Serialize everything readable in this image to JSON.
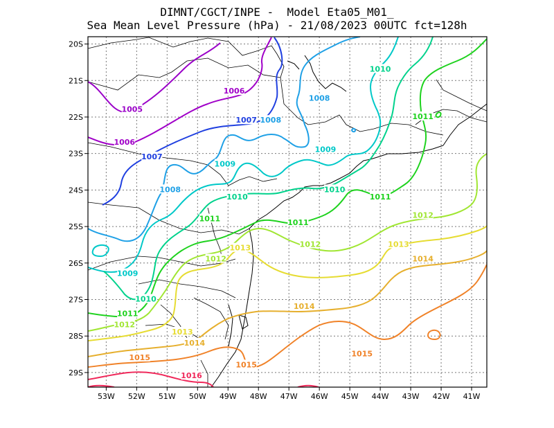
{
  "title": {
    "line1": "DIMNT/CGCT/INPE -  Model Eta05_M01_",
    "line2": "Sea Mean Level Pressure (hPa) - 21/08/2023 00UTC fct=128h"
  },
  "axes": {
    "lon_ticks": [
      "53W",
      "52W",
      "51W",
      "50W",
      "49W",
      "48W",
      "47W",
      "46W",
      "45W",
      "44W",
      "43W",
      "42W",
      "41W"
    ],
    "lat_ticks": [
      "20S",
      "21S",
      "22S",
      "23S",
      "24S",
      "25S",
      "26S",
      "27S",
      "28S",
      "29S"
    ],
    "lon_range": [
      -53.6,
      -40.5
    ],
    "lat_range": [
      -29.4,
      -19.8
    ]
  },
  "colors": {
    "1005": "#9a00c8",
    "1006": "#a000c8",
    "1007": "#2040e0",
    "1008": "#1ea0e6",
    "1009": "#00c8c8",
    "1010": "#00d28c",
    "1011": "#1ed21e",
    "1012": "#a0e632",
    "1013": "#e6dc32",
    "1014": "#e6af2d",
    "1015": "#f08228",
    "1016": "#f0285a"
  },
  "contour_labels": [
    {
      "text": "1005",
      "lon": -52.15,
      "lat": -21.8,
      "level": "1005"
    },
    {
      "text": "1006",
      "lon": -52.4,
      "lat": -22.7,
      "level": "1006"
    },
    {
      "text": "1006",
      "lon": -48.8,
      "lat": -21.3,
      "level": "1006"
    },
    {
      "text": "1007",
      "lon": -51.5,
      "lat": -23.1,
      "level": "1007"
    },
    {
      "text": "1007",
      "lon": -48.4,
      "lat": -22.1,
      "level": "1007"
    },
    {
      "text": "1008",
      "lon": -50.9,
      "lat": -24.0,
      "level": "1008"
    },
    {
      "text": "1008",
      "lon": -47.6,
      "lat": -22.1,
      "level": "1008"
    },
    {
      "text": "1008",
      "lon": -46.0,
      "lat": -21.5,
      "level": "1008"
    },
    {
      "text": "1009",
      "lon": -49.1,
      "lat": -23.3,
      "level": "1009"
    },
    {
      "text": "1009",
      "lon": -45.8,
      "lat": -22.9,
      "level": "1009"
    },
    {
      "text": "1009",
      "lon": -52.3,
      "lat": -26.3,
      "level": "1009"
    },
    {
      "text": "1010",
      "lon": -44.0,
      "lat": -20.7,
      "level": "1010"
    },
    {
      "text": "1010",
      "lon": -48.7,
      "lat": -24.2,
      "level": "1010"
    },
    {
      "text": "1010",
      "lon": -45.5,
      "lat": -24.0,
      "level": "1010"
    },
    {
      "text": "1010",
      "lon": -51.7,
      "lat": -27.0,
      "level": "1010"
    },
    {
      "text": "1011",
      "lon": -42.6,
      "lat": -22.0,
      "level": "1011"
    },
    {
      "text": "1011",
      "lon": -44.0,
      "lat": -24.2,
      "level": "1011"
    },
    {
      "text": "1011",
      "lon": -49.6,
      "lat": -24.8,
      "level": "1011"
    },
    {
      "text": "1011",
      "lon": -46.7,
      "lat": -24.9,
      "level": "1011"
    },
    {
      "text": "1011",
      "lon": -52.3,
      "lat": -27.4,
      "level": "1011"
    },
    {
      "text": "1012",
      "lon": -42.6,
      "lat": -24.7,
      "level": "1012"
    },
    {
      "text": "1012",
      "lon": -46.3,
      "lat": -25.5,
      "level": "1012"
    },
    {
      "text": "1012",
      "lon": -49.4,
      "lat": -25.9,
      "level": "1012"
    },
    {
      "text": "1012",
      "lon": -52.4,
      "lat": -27.7,
      "level": "1012"
    },
    {
      "text": "1013",
      "lon": -43.4,
      "lat": -25.5,
      "level": "1013"
    },
    {
      "text": "1013",
      "lon": -48.6,
      "lat": -25.6,
      "level": "1013"
    },
    {
      "text": "1013",
      "lon": -50.5,
      "lat": -27.9,
      "level": "1013"
    },
    {
      "text": "1014",
      "lon": -42.6,
      "lat": -25.9,
      "level": "1014"
    },
    {
      "text": "1014",
      "lon": -46.5,
      "lat": -27.2,
      "level": "1014"
    },
    {
      "text": "1014",
      "lon": -50.1,
      "lat": -28.2,
      "level": "1014"
    },
    {
      "text": "1015",
      "lon": -51.9,
      "lat": -28.6,
      "level": "1015"
    },
    {
      "text": "1015",
      "lon": -48.4,
      "lat": -28.8,
      "level": "1015"
    },
    {
      "text": "1015",
      "lon": -44.6,
      "lat": -28.5,
      "level": "1015"
    },
    {
      "text": "1016",
      "lon": -50.2,
      "lat": -29.1,
      "level": "1016"
    }
  ]
}
